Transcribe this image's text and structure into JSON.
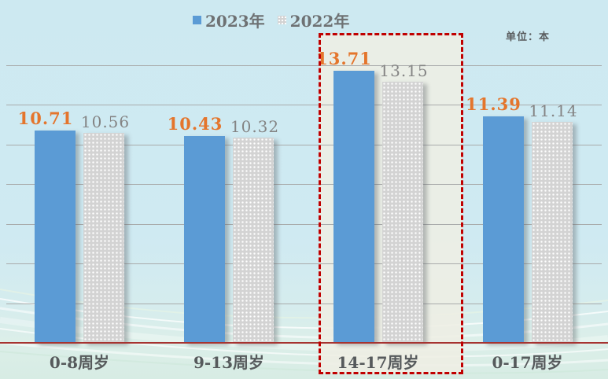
{
  "legend": {
    "items": [
      {
        "label": "2023年",
        "swatch_color": "#5b9bd5",
        "swatch_style": "solid"
      },
      {
        "label": "2022年",
        "swatch_color": "#d3d3d3",
        "swatch_style": "white-dots"
      }
    ]
  },
  "unit_label": "单位：本",
  "highlight": {
    "category": "14-17周岁",
    "border_color": "#c00000",
    "fill_color": "#eeeee4"
  },
  "chart_data": {
    "type": "bar",
    "categories": [
      "0-8周岁",
      "9-13周岁",
      "14-17周岁",
      "0-17周岁"
    ],
    "series": [
      {
        "name": "2023年",
        "values": [
          10.71,
          10.43,
          13.71,
          11.39
        ],
        "bar_color": "#5b9bd5",
        "label_color": "#e4752c"
      },
      {
        "name": "2022年",
        "values": [
          10.56,
          10.32,
          13.15,
          11.14
        ],
        "bar_color": "#d3d3d3",
        "pattern": "white-dots",
        "label_color": "#848484"
      }
    ],
    "title": "",
    "xlabel": "",
    "ylabel": "单位：本",
    "ylim": [
      0,
      14
    ],
    "grid_step": 2,
    "grid": "horizontal",
    "legend_position": "top-center",
    "axis_line_color": "#a63330",
    "highlighted_category": "14-17周岁"
  }
}
